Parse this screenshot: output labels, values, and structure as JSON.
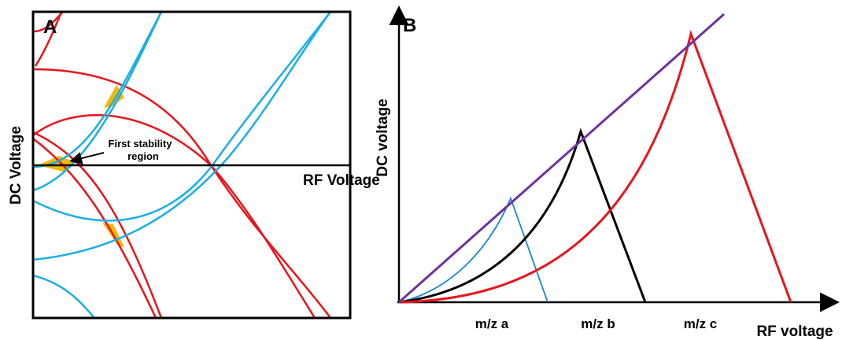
{
  "panel_a": {
    "label": "A",
    "y_axis_label": "DC Voltage",
    "x_axis_label": "RF Voltage",
    "annotation": [
      "First stability",
      "region"
    ]
  },
  "panel_b": {
    "label": "B",
    "y_axis_label": "DC voltage",
    "x_axis_label": "RF voltage",
    "mass_labels": [
      "m/z a",
      "m/z b",
      "m/z c"
    ]
  }
}
